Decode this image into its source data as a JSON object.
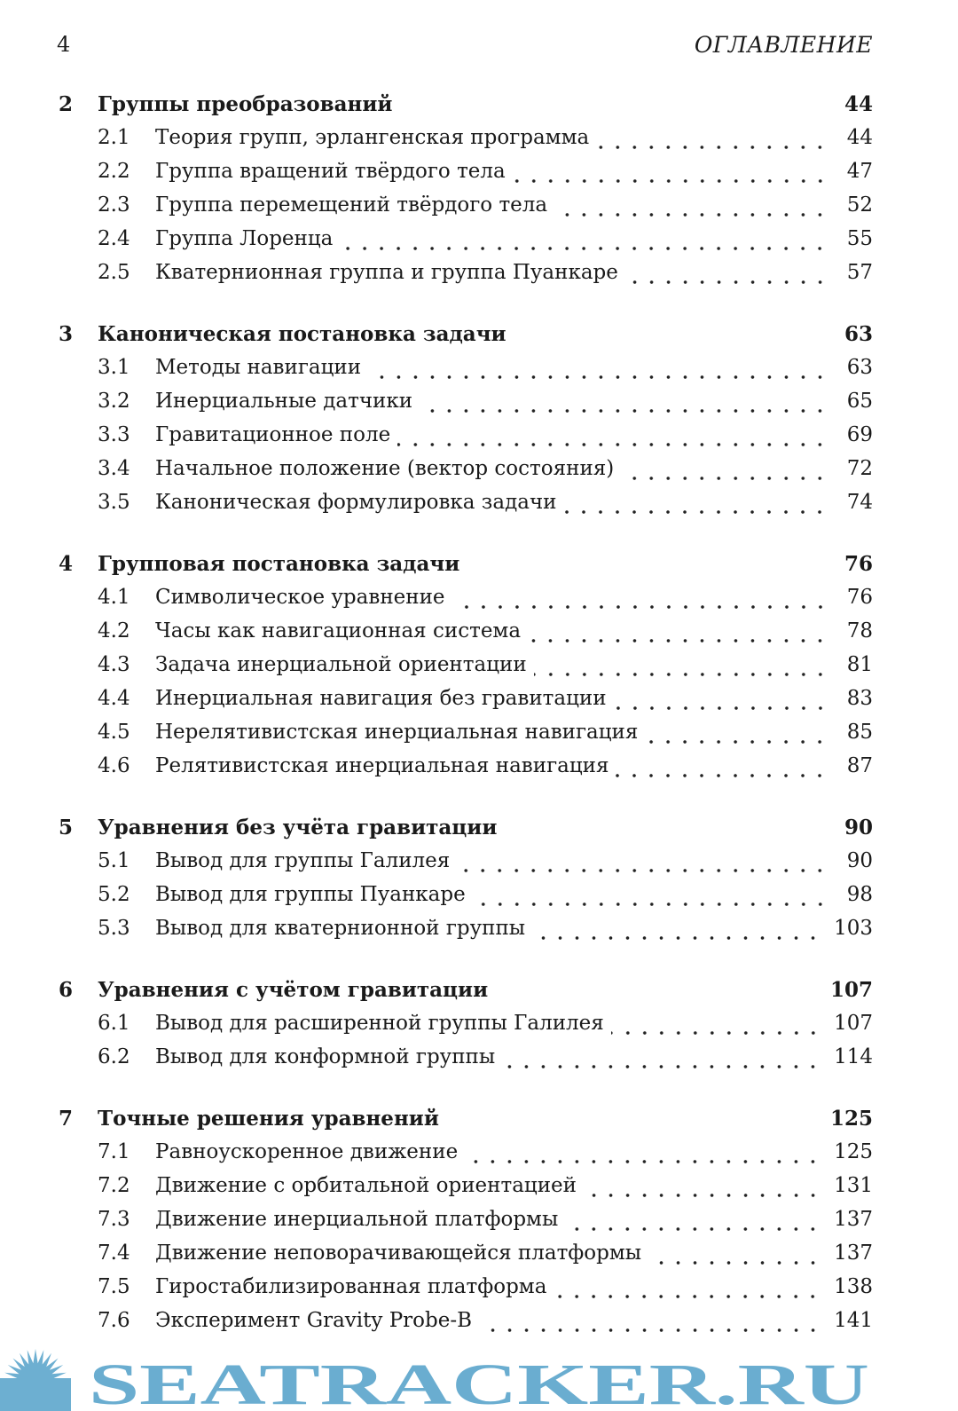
{
  "page_number": "4",
  "running_head": "ОГЛАВЛЕНИЕ",
  "chapters": [
    {
      "num": "2",
      "title": "Группы преобразований",
      "page": "44",
      "sections": [
        {
          "num": "2.1",
          "title": "Теория групп, эрлангенская программа",
          "page": "44"
        },
        {
          "num": "2.2",
          "title": "Группа вращений твёрдого тела",
          "page": "47"
        },
        {
          "num": "2.3",
          "title": "Группа перемещений твёрдого тела",
          "page": "52"
        },
        {
          "num": "2.4",
          "title": "Группа Лоренца",
          "page": "55"
        },
        {
          "num": "2.5",
          "title": "Кватернионная группа и группа Пуанкаре",
          "page": "57"
        }
      ]
    },
    {
      "num": "3",
      "title": "Каноническая постановка задачи",
      "page": "63",
      "sections": [
        {
          "num": "3.1",
          "title": "Методы навигации",
          "page": "63"
        },
        {
          "num": "3.2",
          "title": "Инерциальные датчики",
          "page": "65"
        },
        {
          "num": "3.3",
          "title": "Гравитационное поле",
          "page": "69"
        },
        {
          "num": "3.4",
          "title": "Начальное положение (вектор состояния)",
          "page": "72"
        },
        {
          "num": "3.5",
          "title": "Каноническая формулировка задачи",
          "page": "74"
        }
      ]
    },
    {
      "num": "4",
      "title": "Групповая постановка задачи",
      "page": "76",
      "sections": [
        {
          "num": "4.1",
          "title": "Символическое уравнение",
          "page": "76"
        },
        {
          "num": "4.2",
          "title": "Часы как навигационная система",
          "page": "78"
        },
        {
          "num": "4.3",
          "title": "Задача инерциальной ориентации",
          "page": "81"
        },
        {
          "num": "4.4",
          "title": "Инерциальная навигация без гравитации",
          "page": "83"
        },
        {
          "num": "4.5",
          "title": "Нерелятивистская инерциальная навигация",
          "page": "85"
        },
        {
          "num": "4.6",
          "title": "Релятивистская инерциальная навигация",
          "page": "87"
        }
      ]
    },
    {
      "num": "5",
      "title": "Уравнения без учёта гравитации",
      "page": "90",
      "sections": [
        {
          "num": "5.1",
          "title": "Вывод для группы Галилея",
          "page": "90"
        },
        {
          "num": "5.2",
          "title": "Вывод для группы Пуанкаре",
          "page": "98"
        },
        {
          "num": "5.3",
          "title": "Вывод для кватернионной группы",
          "page": "103"
        }
      ]
    },
    {
      "num": "6",
      "title": "Уравнения с учётом гравитации",
      "page": "107",
      "sections": [
        {
          "num": "6.1",
          "title": "Вывод для расширенной группы Галилея",
          "page": "107"
        },
        {
          "num": "6.2",
          "title": "Вывод для конформной группы",
          "page": "114"
        }
      ]
    },
    {
      "num": "7",
      "title": "Точные решения уравнений",
      "page": "125",
      "sections": [
        {
          "num": "7.1",
          "title": "Равноускоренное движение",
          "page": "125"
        },
        {
          "num": "7.2",
          "title": "Движение с орбитальной ориентацией",
          "page": "131"
        },
        {
          "num": "7.3",
          "title": "Движение инерциальной платформы",
          "page": "137"
        },
        {
          "num": "7.4",
          "title": "Движение неповорачивающейся платформы",
          "page": "137"
        },
        {
          "num": "7.5",
          "title": "Гиростабилизированная платформа",
          "page": "138"
        },
        {
          "num": "7.6",
          "title": "Эксперимент Gravity Probe-B",
          "page": "141"
        }
      ]
    }
  ],
  "watermark": {
    "text": "SEATRACKER.RU",
    "color": "#5ea7cd"
  }
}
